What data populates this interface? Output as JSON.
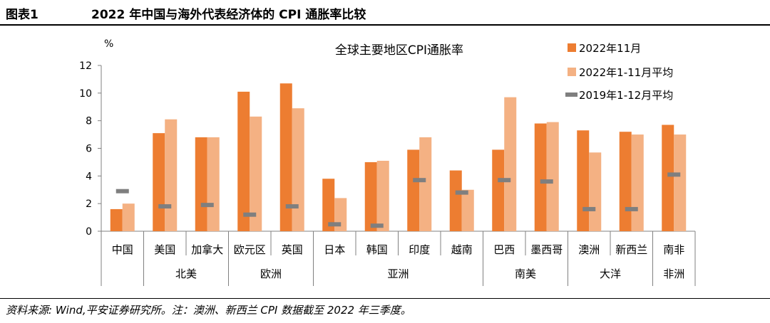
{
  "header": {
    "figure_label": "图表1",
    "title": "2022 年中国与海外代表经济体的 CPI 通胀率比较"
  },
  "footer": {
    "source": "资料来源: Wind,平安证券研究所。注：澳洲、新西兰 CPI 数据截至 2022 年三季度。"
  },
  "chart_data": {
    "type": "bar",
    "title": "全球主要地区CPI通胀率",
    "ylabel": "%",
    "xlabel": "",
    "ylim": [
      0,
      12
    ],
    "yticks": [
      0,
      2,
      4,
      6,
      8,
      10,
      12
    ],
    "grid": false,
    "legend_position": "top-right",
    "categories": [
      "中国",
      "美国",
      "加拿大",
      "欧元区",
      "英国",
      "日本",
      "韩国",
      "印度",
      "越南",
      "巴西",
      "墨西哥",
      "澳洲",
      "新西兰",
      "南非"
    ],
    "groups": [
      {
        "name": "北美",
        "members": [
          "美国",
          "加拿大"
        ]
      },
      {
        "name": "欧洲",
        "members": [
          "欧元区",
          "英国"
        ]
      },
      {
        "name": "亚洲",
        "members": [
          "日本",
          "韩国",
          "印度",
          "越南"
        ]
      },
      {
        "name": "南美",
        "members": [
          "巴西",
          "墨西哥"
        ]
      },
      {
        "name": "大洋",
        "members": [
          "澳洲",
          "新西兰"
        ]
      },
      {
        "name": "非洲",
        "members": [
          "南非"
        ]
      }
    ],
    "series": [
      {
        "name": "2022年11月",
        "kind": "bar",
        "color": "#ED7D31",
        "values": [
          1.6,
          7.1,
          6.8,
          10.1,
          10.7,
          3.8,
          5.0,
          5.9,
          4.4,
          5.9,
          7.8,
          7.3,
          7.2,
          7.7
        ]
      },
      {
        "name": "2022年1-11月平均",
        "kind": "bar",
        "color": "#F4B183",
        "values": [
          2.0,
          8.1,
          6.8,
          8.3,
          8.9,
          2.4,
          5.1,
          6.8,
          3.0,
          9.7,
          7.9,
          5.7,
          7.0,
          7.0
        ]
      },
      {
        "name": "2019年1-12月平均",
        "kind": "marker",
        "color": "#7F7F7F",
        "values": [
          2.9,
          1.8,
          1.9,
          1.2,
          1.8,
          0.5,
          0.4,
          3.7,
          2.8,
          3.7,
          3.6,
          1.6,
          1.6,
          4.1
        ]
      }
    ]
  }
}
